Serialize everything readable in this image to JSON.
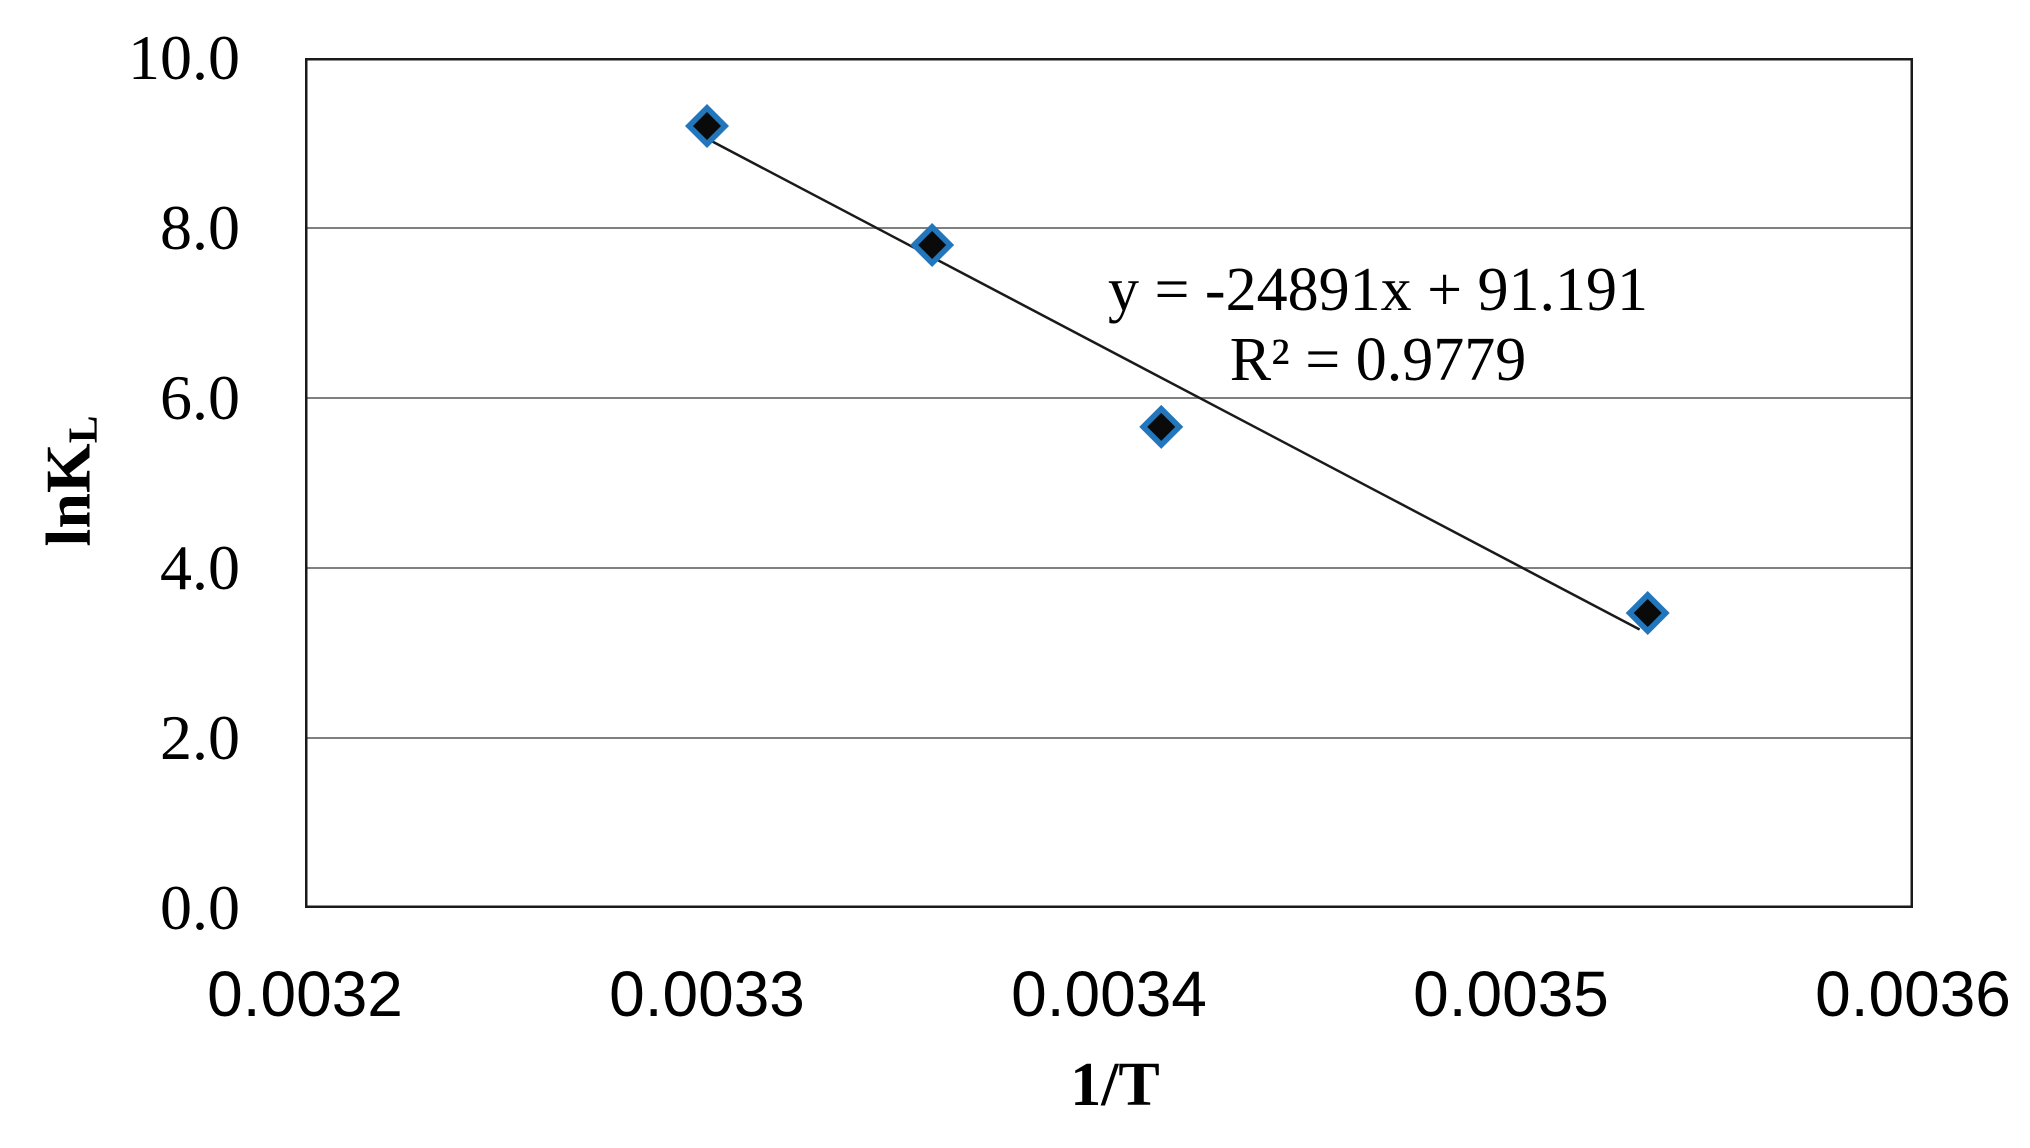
{
  "figure": {
    "background_color": "#ffffff"
  },
  "chart_data": {
    "type": "scatter",
    "title": "",
    "xlabel": "1/T",
    "ylabel": "lnK",
    "ylabel_subscript": "L",
    "points": [
      {
        "x": 0.0033,
        "y": 9.2
      },
      {
        "x": 0.003356,
        "y": 7.8
      },
      {
        "x": 0.003413,
        "y": 5.66
      },
      {
        "x": 0.003534,
        "y": 3.47
      }
    ],
    "xlim": [
      0.0032,
      0.0036
    ],
    "ylim": [
      0.0,
      10.0
    ],
    "x_tick_values": [
      0.0032,
      0.0033,
      0.0034,
      0.0035,
      0.0036
    ],
    "x_tick_labels": [
      "0.0032",
      "0.0033",
      "0.0034",
      "0.0035",
      "0.0036"
    ],
    "y_tick_values": [
      0,
      2,
      4,
      6,
      8,
      10
    ],
    "y_tick_labels": [
      "0.0",
      "2.0",
      "4.0",
      "6.0",
      "8.0",
      "10.0"
    ],
    "grid": {
      "horizontal": true,
      "vertical": false,
      "color": "#808080"
    },
    "legend": "none",
    "trendline": {
      "slope": -24891,
      "intercept": 91.191,
      "x_start": 0.0032985,
      "x_end": 0.003532,
      "color": "#1a1a1a",
      "equation_label": "y = -24891x + 91.191",
      "r_squared_label": "R² = 0.9779"
    },
    "marker": {
      "shape": "diamond",
      "border_color": "#2276bb",
      "fill_color": "#0a0a0a"
    },
    "axis_border_color": "#1a1a1a"
  }
}
